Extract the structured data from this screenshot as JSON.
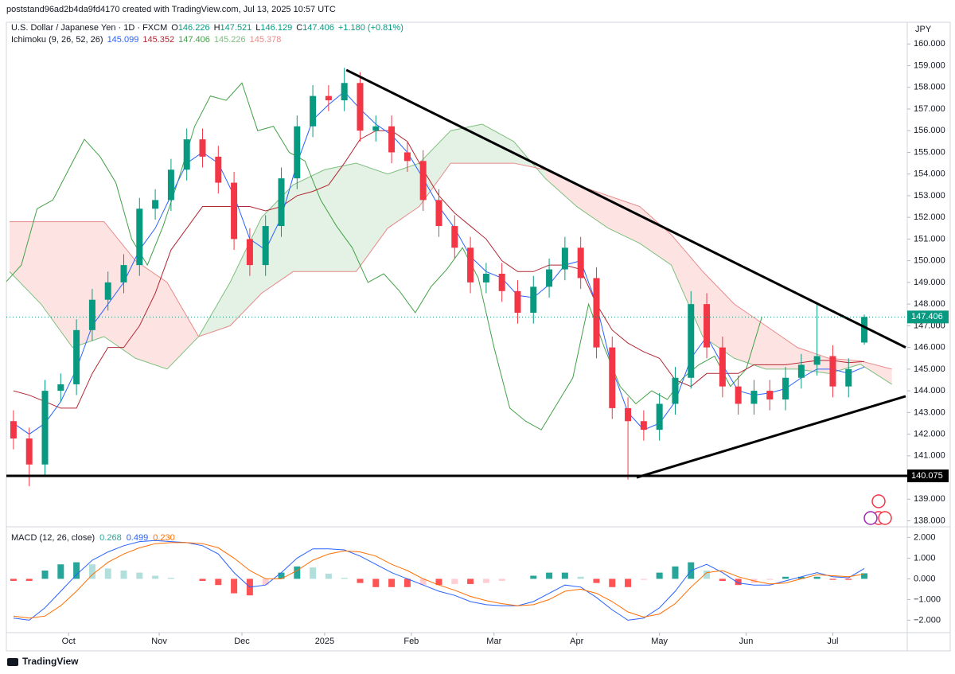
{
  "header": {
    "text": "poststand96ad2b4da9fd4170 created with TradingView.com, Jul 13, 2025 10:57 UTC"
  },
  "footer": {
    "logo": "TradingView"
  },
  "chart_data": {
    "type": "candlestick",
    "instrument": "U.S. Dollar / Japanese Yen · 1D · FXCM",
    "ohlc_labels": [
      "O",
      "H",
      "L",
      "C"
    ],
    "change": "+1.180 (+0.81%)",
    "currency": "JPY",
    "up_color": "#089981",
    "down_color": "#f23645",
    "xlim": [
      -0.8,
      227.9
    ],
    "xticks": [
      {
        "value": 15,
        "label": "Oct"
      },
      {
        "value": 38,
        "label": "Nov"
      },
      {
        "value": 59,
        "label": "Dec"
      },
      {
        "value": 80,
        "label": "2025"
      },
      {
        "value": 102,
        "label": "Feb"
      },
      {
        "value": 123,
        "label": "Mar"
      },
      {
        "value": 144,
        "label": "Apr"
      },
      {
        "value": 165,
        "label": "May"
      },
      {
        "value": 187,
        "label": "Jun"
      },
      {
        "value": 209,
        "label": "Jul"
      }
    ],
    "ylim": [
      137.8,
      161.0
    ],
    "yticks": [
      {
        "value": 160,
        "label": "160.000"
      },
      {
        "value": 159,
        "label": "159.000"
      },
      {
        "value": 158,
        "label": "158.000"
      },
      {
        "value": 157,
        "label": "157.000"
      },
      {
        "value": 156,
        "label": "156.000"
      },
      {
        "value": 155,
        "label": "155.000"
      },
      {
        "value": 154,
        "label": "154.000"
      },
      {
        "value": 153,
        "label": "153.000"
      },
      {
        "value": 152,
        "label": "152.000"
      },
      {
        "value": 151,
        "label": "151.000"
      },
      {
        "value": 150,
        "label": "150.000"
      },
      {
        "value": 149,
        "label": "149.000"
      },
      {
        "value": 148,
        "label": "148.000"
      },
      {
        "value": 147,
        "label": "147.000"
      },
      {
        "value": 146,
        "label": "146.000"
      },
      {
        "value": 145,
        "label": "145.000"
      },
      {
        "value": 144,
        "label": "144.000"
      },
      {
        "value": 143,
        "label": "143.000"
      },
      {
        "value": 142,
        "label": "142.000"
      },
      {
        "value": 141,
        "label": "141.000"
      },
      {
        "value": 140,
        "label": "140.000"
      },
      {
        "value": 139,
        "label": "139.000"
      },
      {
        "value": 138,
        "label": "138.000"
      }
    ],
    "grid": false,
    "x": [
      1,
      5,
      9,
      13,
      17,
      21,
      25,
      29,
      33,
      37,
      41,
      45,
      49,
      53,
      57,
      61,
      65,
      69,
      73,
      77,
      81,
      85,
      89,
      93,
      97,
      101,
      105,
      109,
      113,
      117,
      121,
      125,
      129,
      133,
      137,
      141,
      145,
      149,
      153,
      157,
      161,
      165,
      169,
      173,
      177,
      181,
      185,
      189,
      193,
      197,
      201,
      205,
      209,
      213,
      217
    ],
    "open": [
      142.6,
      141.8,
      140.6,
      144.0,
      144.3,
      146.8,
      148.2,
      149.0,
      149.8,
      152.4,
      152.8,
      154.2,
      155.6,
      154.8,
      153.6,
      151.0,
      149.8,
      151.6,
      153.8,
      156.2,
      157.6,
      157.4,
      158.2,
      156.0,
      156.2,
      155.0,
      154.6,
      152.8,
      151.6,
      150.6,
      149.0,
      149.4,
      148.6,
      147.6,
      148.8,
      149.6,
      150.6,
      149.2,
      146.0,
      143.2,
      142.6,
      142.2,
      143.4,
      144.6,
      148.0,
      146.0,
      144.2,
      143.4,
      144.0,
      143.6,
      144.6,
      145.2,
      145.6,
      144.2,
      146.226
    ],
    "high": [
      143.1,
      142.3,
      144.5,
      144.8,
      147.3,
      148.7,
      149.5,
      150.3,
      152.9,
      153.3,
      154.7,
      156.1,
      156.1,
      155.3,
      154.1,
      151.5,
      152.1,
      154.3,
      156.7,
      158.1,
      158.1,
      158.9,
      158.7,
      156.7,
      156.7,
      155.5,
      155.1,
      153.3,
      152.1,
      151.1,
      149.9,
      149.9,
      149.1,
      149.3,
      150.1,
      151.1,
      151.1,
      149.7,
      146.5,
      143.7,
      143.1,
      143.9,
      145.1,
      148.6,
      148.5,
      146.5,
      144.7,
      144.5,
      144.5,
      145.1,
      145.7,
      148.0,
      146.1,
      145.5,
      147.521
    ],
    "low": [
      141.3,
      139.6,
      140.1,
      143.5,
      143.8,
      146.3,
      147.7,
      148.5,
      149.3,
      151.9,
      152.3,
      153.7,
      154.3,
      153.1,
      150.5,
      149.3,
      149.3,
      151.1,
      153.3,
      155.7,
      156.9,
      156.9,
      155.5,
      155.5,
      154.5,
      154.1,
      152.3,
      151.1,
      150.1,
      148.5,
      148.5,
      148.1,
      147.1,
      147.1,
      148.3,
      149.1,
      148.7,
      145.5,
      142.7,
      139.9,
      141.7,
      141.7,
      142.9,
      144.1,
      145.5,
      143.7,
      142.9,
      142.9,
      143.1,
      143.1,
      144.1,
      144.7,
      143.7,
      143.7,
      146.129
    ],
    "close": [
      141.8,
      140.6,
      144.0,
      144.3,
      146.8,
      148.2,
      149.0,
      149.8,
      152.4,
      152.8,
      154.2,
      155.6,
      154.8,
      153.6,
      151.0,
      149.8,
      151.6,
      153.8,
      156.2,
      157.6,
      157.4,
      158.2,
      156.0,
      156.2,
      155.0,
      154.6,
      152.8,
      151.6,
      150.6,
      149.0,
      149.4,
      148.6,
      147.6,
      148.8,
      149.6,
      150.6,
      149.2,
      146.0,
      143.2,
      142.6,
      142.2,
      143.4,
      144.6,
      148.0,
      146.0,
      144.2,
      143.4,
      144.0,
      143.6,
      144.6,
      145.2,
      145.6,
      144.2,
      145.0,
      147.406
    ],
    "ichimoku": {
      "label": "Ichimoku (9, 26, 52, 26)",
      "chikou_offset": 26,
      "chikou_color": "#43a047",
      "tenkan": {
        "color": "#2962ff",
        "values": [
          142.5,
          142.0,
          142.5,
          143.5,
          145.0,
          147.0,
          148.0,
          149.0,
          150.5,
          151.5,
          153.0,
          154.5,
          155.0,
          154.5,
          153.0,
          151.0,
          150.5,
          152.0,
          154.5,
          156.5,
          157.2,
          157.8,
          157.0,
          156.3,
          155.8,
          155.0,
          153.8,
          152.5,
          151.5,
          150.2,
          149.5,
          149.2,
          148.4,
          148.3,
          148.9,
          149.8,
          150.0,
          148.0,
          145.0,
          143.0,
          142.2,
          142.5,
          143.5,
          145.5,
          146.5,
          145.2,
          144.0,
          143.8,
          143.9,
          144.1,
          144.6,
          145.0,
          145.0,
          144.8,
          145.099
        ]
      },
      "kijun": {
        "color": "#b22833",
        "values": [
          144.0,
          143.8,
          143.5,
          143.2,
          143.2,
          144.8,
          146.0,
          146.0,
          147.0,
          148.5,
          150.5,
          151.5,
          152.5,
          152.5,
          152.5,
          152.5,
          152.3,
          152.5,
          153.0,
          153.2,
          153.5,
          154.5,
          155.6,
          156.0,
          156.0,
          155.5,
          154.2,
          153.0,
          152.2,
          151.6,
          151.0,
          150.0,
          149.5,
          149.5,
          149.8,
          149.8,
          149.6,
          148.0,
          146.8,
          146.2,
          145.8,
          145.5,
          144.5,
          144.2,
          144.8,
          144.8,
          144.8,
          145.2,
          145.2,
          145.2,
          145.3,
          145.4,
          145.4,
          145.3,
          145.352
        ]
      },
      "span_x": [
        0,
        8,
        16,
        24,
        32,
        40,
        48,
        56,
        64,
        72,
        80,
        88,
        96,
        104,
        112,
        120,
        128,
        136,
        144,
        152,
        160,
        168,
        176,
        184,
        192,
        200,
        208,
        216,
        224
      ],
      "span_a": {
        "color": "#7fbf7f",
        "values": [
          149.5,
          148.0,
          146.0,
          146.5,
          145.5,
          145.0,
          146.5,
          149.0,
          152.0,
          153.5,
          154.2,
          154.5,
          154.0,
          154.5,
          156.0,
          156.3,
          155.5,
          153.8,
          152.5,
          151.5,
          150.8,
          149.8,
          146.5,
          145.5,
          145.0,
          145.0,
          144.8,
          145.226,
          144.3
        ]
      },
      "span_b": {
        "color": "#e88a8a",
        "values": [
          151.8,
          151.8,
          151.8,
          151.8,
          150.0,
          149.0,
          146.5,
          147.0,
          148.5,
          149.5,
          149.5,
          149.5,
          151.5,
          152.5,
          154.5,
          154.5,
          154.5,
          154.2,
          153.5,
          153.0,
          152.5,
          151.2,
          149.5,
          148.0,
          147.0,
          146.0,
          145.5,
          145.378,
          145.0
        ]
      },
      "cloud_up_color": "rgba(67,160,71,0.14)",
      "cloud_down_color": "rgba(244,67,54,0.14)"
    },
    "trend_lines": [
      {
        "x": [
          85.5,
          227.5
        ],
        "y": [
          158.8,
          146.0
        ]
      },
      {
        "x": [
          159.2,
          227.5
        ],
        "y": [
          140.0,
          143.75
        ]
      }
    ],
    "trend_color": "#000000",
    "hline": 140.075,
    "macd": {
      "label": "MACD (12, 26, close)",
      "legend_value_labels": [
        "0.268",
        "0.499",
        "0.230"
      ],
      "ylim": [
        -2.6,
        2.4
      ],
      "yticks": [
        {
          "value": 2,
          "label": "2.000"
        },
        {
          "value": 1,
          "label": "1.000"
        },
        {
          "value": 0,
          "label": "0.000"
        },
        {
          "value": -1,
          "label": "−1.000"
        },
        {
          "value": -2,
          "label": "−2.000"
        }
      ],
      "macd": {
        "color": "#2962ff",
        "values": [
          -1.9,
          -2.0,
          -1.4,
          -0.6,
          0.2,
          0.9,
          1.3,
          1.6,
          1.8,
          1.85,
          1.8,
          1.75,
          1.6,
          1.2,
          0.3,
          -0.4,
          -0.3,
          0.3,
          1.0,
          1.45,
          1.45,
          1.4,
          1.1,
          0.7,
          0.3,
          0.0,
          -0.3,
          -0.6,
          -0.8,
          -1.1,
          -1.25,
          -1.3,
          -1.3,
          -1.1,
          -0.7,
          -0.3,
          -0.4,
          -0.9,
          -1.5,
          -2.0,
          -1.9,
          -1.4,
          -0.6,
          0.4,
          0.7,
          0.3,
          -0.2,
          -0.3,
          -0.3,
          -0.1,
          0.1,
          0.3,
          0.1,
          0.05,
          0.499
        ]
      },
      "signal": {
        "color": "#ff6d00",
        "values": [
          -1.8,
          -1.9,
          -1.8,
          -1.3,
          -0.6,
          0.2,
          0.8,
          1.2,
          1.5,
          1.7,
          1.75,
          1.75,
          1.7,
          1.5,
          1.0,
          0.4,
          0.0,
          0.0,
          0.4,
          0.9,
          1.2,
          1.35,
          1.3,
          1.1,
          0.7,
          0.4,
          0.0,
          -0.3,
          -0.55,
          -0.85,
          -1.05,
          -1.2,
          -1.3,
          -1.25,
          -1.0,
          -0.6,
          -0.5,
          -0.7,
          -1.1,
          -1.6,
          -1.85,
          -1.7,
          -1.2,
          -0.4,
          0.3,
          0.4,
          0.1,
          -0.1,
          -0.25,
          -0.2,
          0.0,
          0.2,
          0.15,
          0.1,
          0.23
        ]
      },
      "histogram": {
        "colors": [
          "#26a69a",
          "#b2dfdb",
          "#ff5252",
          "#ffcdd2"
        ],
        "values": [
          -0.1,
          -0.1,
          0.4,
          0.7,
          0.8,
          0.7,
          0.5,
          0.4,
          0.3,
          0.15,
          0.05,
          0.0,
          -0.1,
          -0.3,
          -0.7,
          -0.8,
          -0.3,
          0.3,
          0.6,
          0.55,
          0.25,
          0.05,
          -0.2,
          -0.4,
          -0.4,
          -0.4,
          -0.3,
          -0.3,
          -0.25,
          -0.25,
          -0.2,
          -0.1,
          0.0,
          0.15,
          0.3,
          0.3,
          0.1,
          -0.2,
          -0.4,
          -0.4,
          -0.05,
          0.3,
          0.6,
          0.8,
          0.4,
          -0.1,
          -0.3,
          -0.2,
          -0.05,
          0.1,
          0.1,
          0.1,
          -0.05,
          -0.05,
          0.268
        ]
      }
    }
  }
}
